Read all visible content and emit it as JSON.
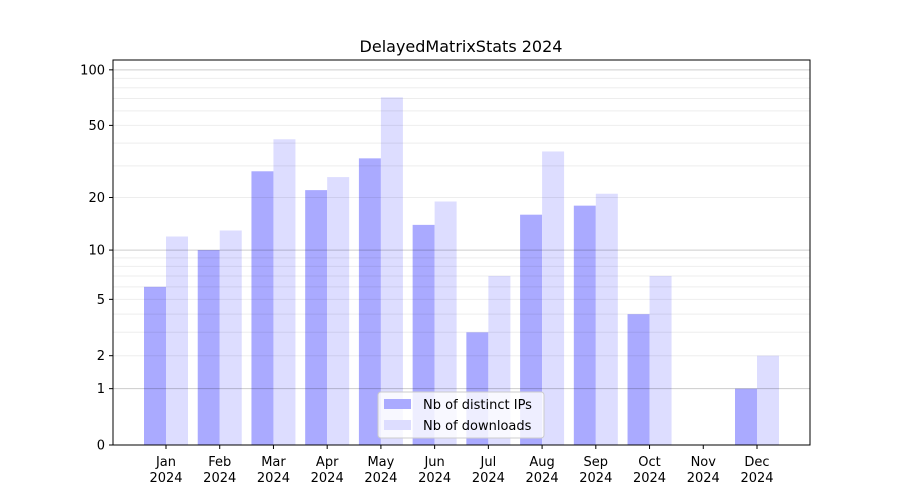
{
  "chart_data": {
    "type": "bar",
    "title": "DelayedMatrixStats 2024",
    "xlabel": "",
    "ylabel": "",
    "yscale": "log10(1+y)",
    "ylim": [
      0,
      113
    ],
    "yticks": [
      0,
      1,
      2,
      5,
      10,
      20,
      50,
      100
    ],
    "grid": true,
    "legend_position": "lower-center",
    "categories": [
      "Jan",
      "Feb",
      "Mar",
      "Apr",
      "May",
      "Jun",
      "Jul",
      "Aug",
      "Sep",
      "Oct",
      "Nov",
      "Dec"
    ],
    "category_year": "2024",
    "series": [
      {
        "name": "Nb of distinct IPs",
        "color": "#aaaaff",
        "values": [
          6,
          10,
          28,
          22,
          33,
          14,
          3,
          16,
          18,
          4,
          0,
          1
        ]
      },
      {
        "name": "Nb of downloads",
        "color": "#ddddff",
        "values": [
          12,
          13,
          42,
          26,
          71,
          19,
          7,
          36,
          21,
          7,
          0,
          2
        ]
      }
    ]
  }
}
